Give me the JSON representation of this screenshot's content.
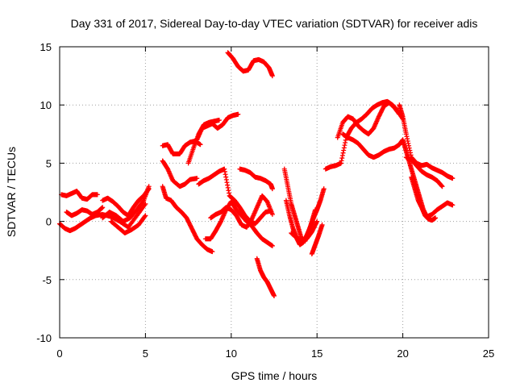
{
  "chart_data": {
    "type": "scatter",
    "title": "Day 331 of 2017, Sidereal Day-to-day VTEC variation (SDTVAR) for receiver adis",
    "xlabel": "GPS time / hours",
    "ylabel": "SDTVAR / TECUs",
    "xlim": [
      0,
      25
    ],
    "ylim": [
      -10,
      15
    ],
    "xticks": [
      "0",
      "5",
      "10",
      "15",
      "20",
      "25"
    ],
    "yticks": [
      "-10",
      "-5",
      "0",
      "5",
      "10",
      "15"
    ],
    "grid": true,
    "marker": "plus",
    "color": "#ff0000",
    "series": [
      {
        "name": "s01",
        "x": [
          0.0,
          0.3,
          0.6,
          0.9,
          1.2,
          1.5,
          1.8,
          2.1,
          2.5,
          3.0,
          3.5,
          4.0,
          4.5,
          5.0
        ],
        "y": [
          -0.2,
          -0.6,
          -0.8,
          -0.6,
          -0.3,
          0.0,
          0.3,
          0.5,
          0.6,
          0.4,
          0.0,
          -0.5,
          0.5,
          1.5
        ]
      },
      {
        "name": "s02",
        "x": [
          0.1,
          0.4,
          0.7,
          1.0,
          1.3,
          1.6,
          1.9,
          2.2
        ],
        "y": [
          2.3,
          2.2,
          2.4,
          2.6,
          2.0,
          1.9,
          2.3,
          2.3
        ]
      },
      {
        "name": "s03",
        "x": [
          0.4,
          0.7,
          1.0,
          1.3,
          1.6,
          1.9,
          2.2,
          2.5
        ],
        "y": [
          0.8,
          0.5,
          0.7,
          1.0,
          0.9,
          0.6,
          0.8,
          1.2
        ]
      },
      {
        "name": "s04",
        "x": [
          2.5,
          2.8,
          3.1,
          3.4,
          3.7,
          4.0,
          4.3,
          4.6,
          4.9,
          5.2
        ],
        "y": [
          1.8,
          2.0,
          1.7,
          1.3,
          0.8,
          0.5,
          1.2,
          1.8,
          2.2,
          2.8
        ]
      },
      {
        "name": "s05",
        "x": [
          2.5,
          2.9,
          3.3,
          3.7,
          4.1,
          4.5,
          4.9,
          5.2
        ],
        "y": [
          0.3,
          0.8,
          0.5,
          0.0,
          0.3,
          1.0,
          1.8,
          3.0
        ]
      },
      {
        "name": "s06",
        "x": [
          3.0,
          3.4,
          3.8,
          4.2,
          4.6,
          5.0
        ],
        "y": [
          0.0,
          -0.5,
          -1.0,
          -0.7,
          -0.3,
          0.5
        ]
      },
      {
        "name": "s07",
        "x": [
          6.0,
          6.3,
          6.6,
          7.0,
          7.3,
          7.6,
          7.9,
          8.2
        ],
        "y": [
          6.5,
          6.6,
          5.8,
          5.8,
          6.5,
          6.8,
          6.9,
          6.6
        ]
      },
      {
        "name": "s08",
        "x": [
          6.0,
          6.3,
          6.6,
          7.0,
          7.3,
          7.6,
          8.0
        ],
        "y": [
          5.2,
          4.5,
          3.5,
          3.0,
          3.2,
          3.6,
          3.7
        ]
      },
      {
        "name": "s09",
        "x": [
          6.0,
          6.2,
          6.5,
          6.8,
          7.1,
          7.4,
          7.7,
          8.0,
          8.3,
          8.6,
          8.9
        ],
        "y": [
          3.0,
          2.0,
          1.8,
          1.2,
          0.8,
          0.3,
          -0.6,
          -1.5,
          -2.0,
          -2.4,
          -2.6
        ]
      },
      {
        "name": "s10",
        "x": [
          7.5,
          7.8,
          8.1,
          8.4,
          8.7,
          9.0,
          9.3
        ],
        "y": [
          5.0,
          6.3,
          7.5,
          8.3,
          8.5,
          8.6,
          8.7
        ]
      },
      {
        "name": "s11",
        "x": [
          8.0,
          8.3,
          8.6,
          8.9,
          9.2,
          9.5,
          9.8,
          10.1,
          10.4
        ],
        "y": [
          7.0,
          8.0,
          8.2,
          8.4,
          8.0,
          8.3,
          8.9,
          9.1,
          9.2
        ]
      },
      {
        "name": "s12",
        "x": [
          8.1,
          8.4,
          8.7,
          9.0,
          9.3,
          9.6,
          9.9,
          10.2,
          10.5,
          10.8,
          11.1,
          11.4,
          11.7,
          12.0,
          12.3
        ],
        "y": [
          3.2,
          3.5,
          3.7,
          4.0,
          4.3,
          4.5,
          2.2,
          1.8,
          1.2,
          0.5,
          0.0,
          -0.2,
          0.3,
          0.8,
          0.9
        ]
      },
      {
        "name": "s13",
        "x": [
          8.5,
          8.8,
          9.1,
          9.4,
          9.7,
          10.0,
          10.3,
          10.6,
          10.9,
          11.2,
          11.5,
          11.8,
          12.1,
          12.4
        ],
        "y": [
          -1.5,
          -1.5,
          -0.8,
          0.0,
          1.0,
          1.7,
          1.0,
          0.5,
          0.0,
          -0.4,
          -1.0,
          -1.5,
          -1.8,
          -2.1
        ]
      },
      {
        "name": "s14",
        "x": [
          8.8,
          9.1,
          9.4,
          9.7,
          10.0,
          10.3,
          10.6,
          10.9,
          11.2,
          11.5,
          11.8,
          12.1,
          12.4
        ],
        "y": [
          0.3,
          0.6,
          0.8,
          1.2,
          1.0,
          0.5,
          -0.3,
          -0.5,
          0.2,
          1.2,
          2.2,
          1.7,
          0.6
        ]
      },
      {
        "name": "s15",
        "x": [
          10.5,
          10.8,
          11.1,
          11.4,
          11.7,
          12.0,
          12.3,
          12.4
        ],
        "y": [
          4.5,
          4.4,
          4.2,
          3.8,
          3.7,
          3.5,
          3.2,
          2.8
        ]
      },
      {
        "name": "s16",
        "x": [
          9.8,
          10.1,
          10.4,
          10.7,
          11.0,
          11.3,
          11.6,
          11.9,
          12.2,
          12.4
        ],
        "y": [
          14.5,
          14.0,
          13.3,
          12.9,
          13.0,
          13.8,
          13.9,
          13.7,
          13.2,
          12.5
        ]
      },
      {
        "name": "s17",
        "x": [
          11.5,
          11.7,
          11.9,
          12.1,
          12.3,
          12.5
        ],
        "y": [
          -3.2,
          -4.2,
          -4.8,
          -5.2,
          -5.8,
          -6.4
        ]
      },
      {
        "name": "s18",
        "x": [
          13.1,
          13.3,
          13.5,
          13.7,
          13.9,
          14.1,
          14.3,
          14.5,
          14.7,
          14.9
        ],
        "y": [
          4.5,
          3.0,
          1.5,
          0.5,
          -0.5,
          -1.5,
          -1.7,
          -1.0,
          0.0,
          1.0
        ]
      },
      {
        "name": "s19",
        "x": [
          13.2,
          13.4,
          13.6,
          13.8,
          14.0,
          14.2,
          14.4,
          14.6,
          14.8,
          15.0,
          15.2,
          15.4
        ],
        "y": [
          1.8,
          0.5,
          -0.6,
          -1.4,
          -2.0,
          -1.8,
          -1.2,
          -0.5,
          0.3,
          1.0,
          1.8,
          2.8
        ]
      },
      {
        "name": "s20",
        "x": [
          13.5,
          13.8,
          14.1,
          14.4,
          14.7,
          15.0
        ],
        "y": [
          -1.0,
          -1.4,
          -1.7,
          -1.5,
          -0.9,
          0.0
        ]
      },
      {
        "name": "s21",
        "x": [
          14.7,
          14.9,
          15.1,
          15.3
        ],
        "y": [
          -2.8,
          -2.0,
          -1.2,
          -0.3
        ]
      },
      {
        "name": "s22",
        "x": [
          15.5,
          15.8,
          16.1,
          16.4,
          16.7,
          17.0,
          17.3,
          17.6,
          17.9,
          18.2,
          18.5,
          18.8,
          19.1,
          19.4,
          19.7,
          20.0
        ],
        "y": [
          4.5,
          4.7,
          4.8,
          5.0,
          7.2,
          8.0,
          8.5,
          8.8,
          9.2,
          9.7,
          10.0,
          10.2,
          10.3,
          10.0,
          9.5,
          8.8
        ]
      },
      {
        "name": "s23",
        "x": [
          16.5,
          16.8,
          17.1,
          17.4,
          17.7,
          18.0,
          18.3,
          18.6,
          18.9,
          19.2,
          19.5,
          19.8,
          20.0
        ],
        "y": [
          7.5,
          7.2,
          7.0,
          6.7,
          6.2,
          5.7,
          5.5,
          5.7,
          6.0,
          6.2,
          6.3,
          6.6,
          7.0
        ]
      },
      {
        "name": "s24",
        "x": [
          16.2,
          16.5,
          16.8,
          17.1,
          17.4,
          17.7,
          18.0,
          18.3,
          18.6,
          18.9,
          19.2,
          19.5,
          19.8
        ],
        "y": [
          7.2,
          8.5,
          9.0,
          8.8,
          8.2,
          7.8,
          7.5,
          8.0,
          9.0,
          9.9,
          10.2,
          9.8,
          9.2
        ]
      },
      {
        "name": "s25",
        "x": [
          19.8,
          20.0,
          20.2,
          20.5,
          20.8,
          21.1,
          21.4,
          21.7,
          22.0,
          22.3,
          22.6,
          22.9
        ],
        "y": [
          10.0,
          9.0,
          7.5,
          5.5,
          5.0,
          4.8,
          4.9,
          4.6,
          4.4,
          4.2,
          3.9,
          3.7
        ]
      },
      {
        "name": "s26",
        "x": [
          20.0,
          20.2,
          20.4,
          20.6,
          20.8,
          21.0,
          21.2,
          21.4,
          21.7,
          22.0,
          22.3,
          22.6,
          22.9
        ],
        "y": [
          7.0,
          6.0,
          5.0,
          4.0,
          3.0,
          2.0,
          1.0,
          0.4,
          0.6,
          1.0,
          1.3,
          1.6,
          1.4
        ]
      },
      {
        "name": "s27",
        "x": [
          20.2,
          20.5,
          20.8,
          21.1,
          21.4,
          21.7,
          22.0,
          22.3
        ],
        "y": [
          5.5,
          5.3,
          4.8,
          4.3,
          4.0,
          3.8,
          3.5,
          3.0
        ]
      },
      {
        "name": "s28",
        "x": [
          20.5,
          20.7,
          20.9,
          21.1,
          21.3,
          21.5,
          21.7,
          21.9
        ],
        "y": [
          3.8,
          2.8,
          1.8,
          1.2,
          0.5,
          0.2,
          0.1,
          0.3
        ]
      }
    ]
  }
}
